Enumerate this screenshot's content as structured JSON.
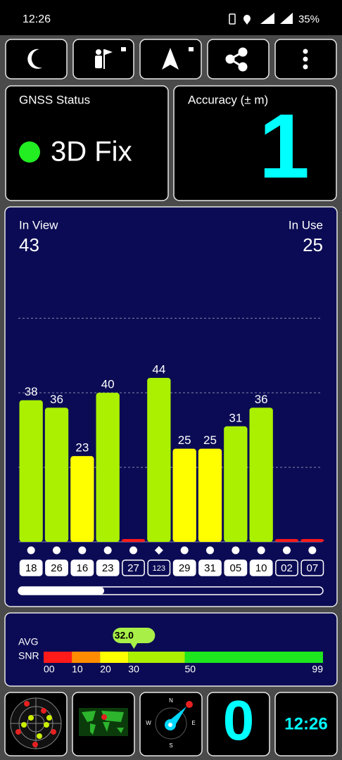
{
  "status_bar": {
    "time": "12:26",
    "battery": "35%"
  },
  "gnss_status": {
    "label": "GNSS Status",
    "value": "3D Fix"
  },
  "accuracy": {
    "label": "Accuracy (± m)",
    "value": "1"
  },
  "satellites": {
    "in_view_label": "In View",
    "in_view": 43,
    "in_use_label": "In Use",
    "in_use": 25,
    "chart_data": {
      "type": "bar",
      "categories": [
        "18",
        "26",
        "16",
        "23",
        "27",
        "123",
        "29",
        "31",
        "05",
        "10",
        "02",
        "07"
      ],
      "values": [
        38,
        36,
        23,
        40,
        0,
        44,
        25,
        25,
        31,
        36,
        0,
        0
      ],
      "shapes": [
        "circle",
        "circle",
        "circle",
        "circle",
        "circle",
        "diamond",
        "circle",
        "circle",
        "circle",
        "circle",
        "circle",
        "circle"
      ],
      "used": [
        true,
        true,
        true,
        true,
        false,
        false,
        true,
        true,
        true,
        true,
        false,
        false
      ],
      "ylim": [
        0,
        64
      ],
      "grid_lines": [
        20,
        40,
        60
      ]
    }
  },
  "snr": {
    "label_top": "AVG",
    "label_bottom": "SNR",
    "average": 32.0,
    "average_label": "32.0",
    "xlim": [
      0,
      99
    ],
    "ticks": [
      {
        "value": 0,
        "label": "00"
      },
      10,
      20,
      30,
      50,
      99
    ],
    "colors": [
      "#ff1a1a",
      "#ff8c00",
      "#ffff00",
      "#aaf000",
      "#1ee61e"
    ]
  },
  "widgets": {
    "fixed_satellites": "0",
    "clock": "12:26"
  }
}
